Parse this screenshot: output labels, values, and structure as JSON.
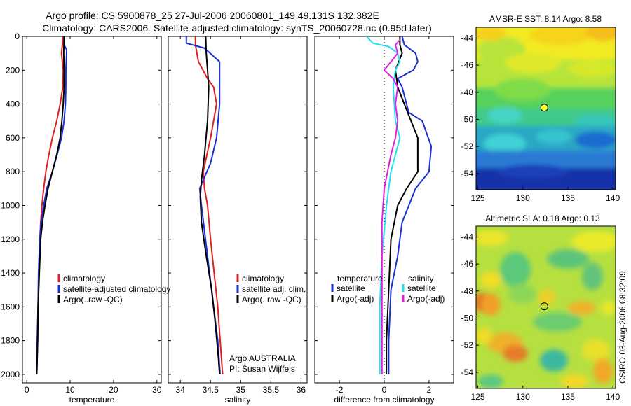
{
  "figure": {
    "title_line1": "Argo profile: CS 5900878_25 27-Jul-2006 20060801_149 49.131S 132.382E",
    "title_line2": "Climatology: CARS2006. Satellite-adjusted climatology: synTS_20060728.nc (0.95d later)",
    "credit": "CSIRO 03-Aug-2006 08:32:09",
    "argo_note_line1": "Argo AUSTRALIA",
    "argo_note_line2": "PI: Susan Wijffels",
    "colors": {
      "climatology": "#e02020",
      "satellite": "#1a2fd6",
      "argo": "#000000",
      "cyan": "#20e0f0",
      "magenta": "#e020e0",
      "dot": "#ffff33"
    }
  },
  "chart_data": [
    {
      "type": "line",
      "xlabel": "temperature",
      "ylabel": "",
      "xlim": [
        -1,
        31
      ],
      "ylim": [
        0,
        2050
      ],
      "y_reversed": true,
      "x_ticks": [
        0,
        10,
        20,
        30
      ],
      "y_ticks": [
        0,
        200,
        400,
        600,
        800,
        1000,
        1200,
        1400,
        1600,
        1800,
        2000
      ],
      "legend": [
        "climatology",
        "satellite-adjusted climatology",
        "Argo(..raw -QC)"
      ],
      "series": [
        {
          "name": "climatology",
          "color": "#e02020",
          "points": [
            [
              8.3,
              0
            ],
            [
              8.2,
              50
            ],
            [
              8.0,
              100
            ],
            [
              8.2,
              150
            ],
            [
              8.4,
              200
            ],
            [
              8.3,
              300
            ],
            [
              7.7,
              400
            ],
            [
              6.9,
              500
            ],
            [
              5.9,
              600
            ],
            [
              5.1,
              700
            ],
            [
              4.4,
              800
            ],
            [
              3.9,
              900
            ],
            [
              3.5,
              1000
            ],
            [
              3.2,
              1100
            ],
            [
              3.0,
              1200
            ],
            [
              2.8,
              1400
            ],
            [
              2.6,
              1600
            ],
            [
              2.5,
              1800
            ],
            [
              2.3,
              2000
            ]
          ]
        },
        {
          "name": "satellite-adjusted climatology",
          "color": "#1a2fd6",
          "points": [
            [
              8.6,
              0
            ],
            [
              8.6,
              50
            ],
            [
              9.2,
              80
            ],
            [
              9.1,
              150
            ],
            [
              9.0,
              200
            ],
            [
              9.0,
              300
            ],
            [
              8.9,
              400
            ],
            [
              8.6,
              500
            ],
            [
              8.0,
              600
            ],
            [
              7.0,
              700
            ],
            [
              5.9,
              800
            ],
            [
              4.6,
              900
            ],
            [
              3.9,
              1000
            ],
            [
              3.3,
              1100
            ],
            [
              3.0,
              1200
            ],
            [
              2.7,
              1400
            ],
            [
              2.6,
              1600
            ],
            [
              2.4,
              1800
            ],
            [
              2.3,
              2000
            ]
          ]
        },
        {
          "name": "Argo(..raw -QC)",
          "color": "#000000",
          "points": [
            [
              8.6,
              0
            ],
            [
              8.5,
              100
            ],
            [
              8.6,
              200
            ],
            [
              8.6,
              300
            ],
            [
              8.4,
              400
            ],
            [
              8.1,
              500
            ],
            [
              7.7,
              600
            ],
            [
              6.9,
              700
            ],
            [
              5.9,
              800
            ],
            [
              4.9,
              900
            ],
            [
              4.2,
              1000
            ],
            [
              3.6,
              1100
            ],
            [
              3.2,
              1200
            ],
            [
              2.9,
              1400
            ],
            [
              2.6,
              1600
            ],
            [
              2.5,
              1800
            ],
            [
              2.3,
              2000
            ]
          ]
        }
      ]
    },
    {
      "type": "line",
      "xlabel": "salinity",
      "ylabel": "",
      "xlim": [
        33.8,
        36.1
      ],
      "ylim": [
        0,
        2050
      ],
      "y_reversed": true,
      "x_ticks": [
        34,
        34.5,
        35,
        35.5,
        36
      ],
      "legend": [
        "climatology",
        "satellite adj. clim.",
        "Argo(..raw -QC)"
      ],
      "series": [
        {
          "name": "climatology",
          "color": "#e02020",
          "points": [
            [
              34.25,
              0
            ],
            [
              34.25,
              50
            ],
            [
              34.3,
              150
            ],
            [
              34.45,
              250
            ],
            [
              34.55,
              300
            ],
            [
              34.6,
              400
            ],
            [
              34.5,
              600
            ],
            [
              34.38,
              800
            ],
            [
              34.4,
              900
            ],
            [
              34.45,
              1000
            ],
            [
              34.5,
              1200
            ],
            [
              34.56,
              1400
            ],
            [
              34.62,
              1600
            ],
            [
              34.66,
              1800
            ],
            [
              34.7,
              2000
            ]
          ]
        },
        {
          "name": "satellite adj. clim.",
          "color": "#1a2fd6",
          "points": [
            [
              34.1,
              0
            ],
            [
              34.1,
              40
            ],
            [
              34.4,
              70
            ],
            [
              34.65,
              150
            ],
            [
              34.65,
              200
            ],
            [
              34.65,
              400
            ],
            [
              34.6,
              600
            ],
            [
              34.5,
              750
            ],
            [
              34.38,
              850
            ],
            [
              34.32,
              900
            ],
            [
              34.35,
              1000
            ],
            [
              34.45,
              1300
            ],
            [
              34.55,
              1600
            ],
            [
              34.62,
              1800
            ],
            [
              34.66,
              2000
            ]
          ]
        },
        {
          "name": "Argo(..raw -QC)",
          "color": "#000000",
          "points": [
            [
              34.42,
              0
            ],
            [
              34.43,
              100
            ],
            [
              34.45,
              200
            ],
            [
              34.47,
              300
            ],
            [
              34.45,
              500
            ],
            [
              34.4,
              700
            ],
            [
              34.35,
              850
            ],
            [
              34.33,
              950
            ],
            [
              34.35,
              1100
            ],
            [
              34.43,
              1300
            ],
            [
              34.52,
              1500
            ],
            [
              34.58,
              1700
            ],
            [
              34.63,
              1900
            ],
            [
              34.65,
              2000
            ]
          ]
        }
      ]
    },
    {
      "type": "line",
      "xlabel": "difference from climatology",
      "ylabel": "",
      "xlim": [
        -3.1,
        3.1
      ],
      "ylim": [
        0,
        2050
      ],
      "y_reversed": true,
      "x_ticks": [
        -2,
        0,
        2
      ],
      "legend_titles": [
        "temperature",
        "salinity"
      ],
      "legend": [
        "satellite",
        "Argo(-adj)",
        "satellite",
        "Argo(-adj)"
      ],
      "series": [
        {
          "name": "satellite",
          "group": "temperature",
          "color": "#1a2fd6",
          "points": [
            [
              0.8,
              0
            ],
            [
              0.9,
              50
            ],
            [
              1.4,
              100
            ],
            [
              1.5,
              150
            ],
            [
              1.3,
              200
            ],
            [
              0.6,
              250
            ],
            [
              0.8,
              300
            ],
            [
              1.1,
              450
            ],
            [
              1.7,
              500
            ],
            [
              2.1,
              650
            ],
            [
              2.0,
              800
            ],
            [
              1.4,
              900
            ],
            [
              1.1,
              1000
            ],
            [
              0.8,
              1100
            ],
            [
              0.6,
              1300
            ],
            [
              0.3,
              1500
            ],
            [
              0.2,
              1800
            ],
            [
              0.2,
              2000
            ]
          ]
        },
        {
          "name": "Argo(-adj)",
          "group": "temperature",
          "color": "#000000",
          "points": [
            [
              0.7,
              0
            ],
            [
              0.7,
              50
            ],
            [
              0.8,
              100
            ],
            [
              0.5,
              200
            ],
            [
              0.6,
              300
            ],
            [
              0.9,
              400
            ],
            [
              1.2,
              500
            ],
            [
              1.5,
              600
            ],
            [
              1.5,
              800
            ],
            [
              1.0,
              900
            ],
            [
              0.6,
              1000
            ],
            [
              0.3,
              1200
            ],
            [
              0.2,
              1500
            ],
            [
              0.1,
              1800
            ],
            [
              0.1,
              2000
            ]
          ]
        },
        {
          "name": "satellite",
          "group": "salinity",
          "color": "#20e0f0",
          "points": [
            [
              -0.8,
              0
            ],
            [
              -0.5,
              40
            ],
            [
              0.2,
              60
            ],
            [
              0.6,
              100
            ],
            [
              0.7,
              150
            ],
            [
              0.5,
              200
            ],
            [
              0.4,
              300
            ],
            [
              0.5,
              500
            ],
            [
              0.7,
              600
            ],
            [
              0.5,
              700
            ],
            [
              0.3,
              800
            ],
            [
              0.1,
              1000
            ],
            [
              -0.1,
              1300
            ],
            [
              -0.2,
              1600
            ],
            [
              -0.2,
              1800
            ],
            [
              -0.2,
              2000
            ]
          ]
        },
        {
          "name": "Argo(-adj)",
          "group": "salinity",
          "color": "#e020e0",
          "points": [
            [
              0.7,
              20
            ],
            [
              0.5,
              50
            ],
            [
              0.6,
              100
            ],
            [
              0.3,
              150
            ],
            [
              0.0,
              200
            ],
            [
              0.4,
              250
            ],
            [
              0.6,
              300
            ],
            [
              0.5,
              400
            ],
            [
              0.6,
              500
            ],
            [
              0.5,
              600
            ],
            [
              0.3,
              700
            ],
            [
              0.0,
              900
            ],
            [
              -0.1,
              1100
            ],
            [
              -0.1,
              1500
            ],
            [
              -0.1,
              2000
            ]
          ]
        }
      ]
    },
    {
      "type": "heatmap",
      "title": "AMSR-E SST: 8.14 Argo: 8.58",
      "xlim": [
        124.8,
        140.3
      ],
      "ylim": [
        -55.2,
        -43.2
      ],
      "x_ticks": [
        125,
        130,
        135,
        140
      ],
      "y_ticks": [
        -44,
        -46,
        -48,
        -50,
        -52,
        -54
      ],
      "marker": {
        "lon": 132.382,
        "lat": -49.131
      }
    },
    {
      "type": "heatmap",
      "title": "Altimetric SLA: 0.18 Argo: 0.13",
      "xlim": [
        124.8,
        140.3
      ],
      "ylim": [
        -55.2,
        -43.2
      ],
      "x_ticks": [
        125,
        130,
        135,
        140
      ],
      "y_ticks": [
        -44,
        -46,
        -48,
        -50,
        -52,
        -54
      ],
      "marker": {
        "lon": 132.382,
        "lat": -49.131
      }
    }
  ]
}
